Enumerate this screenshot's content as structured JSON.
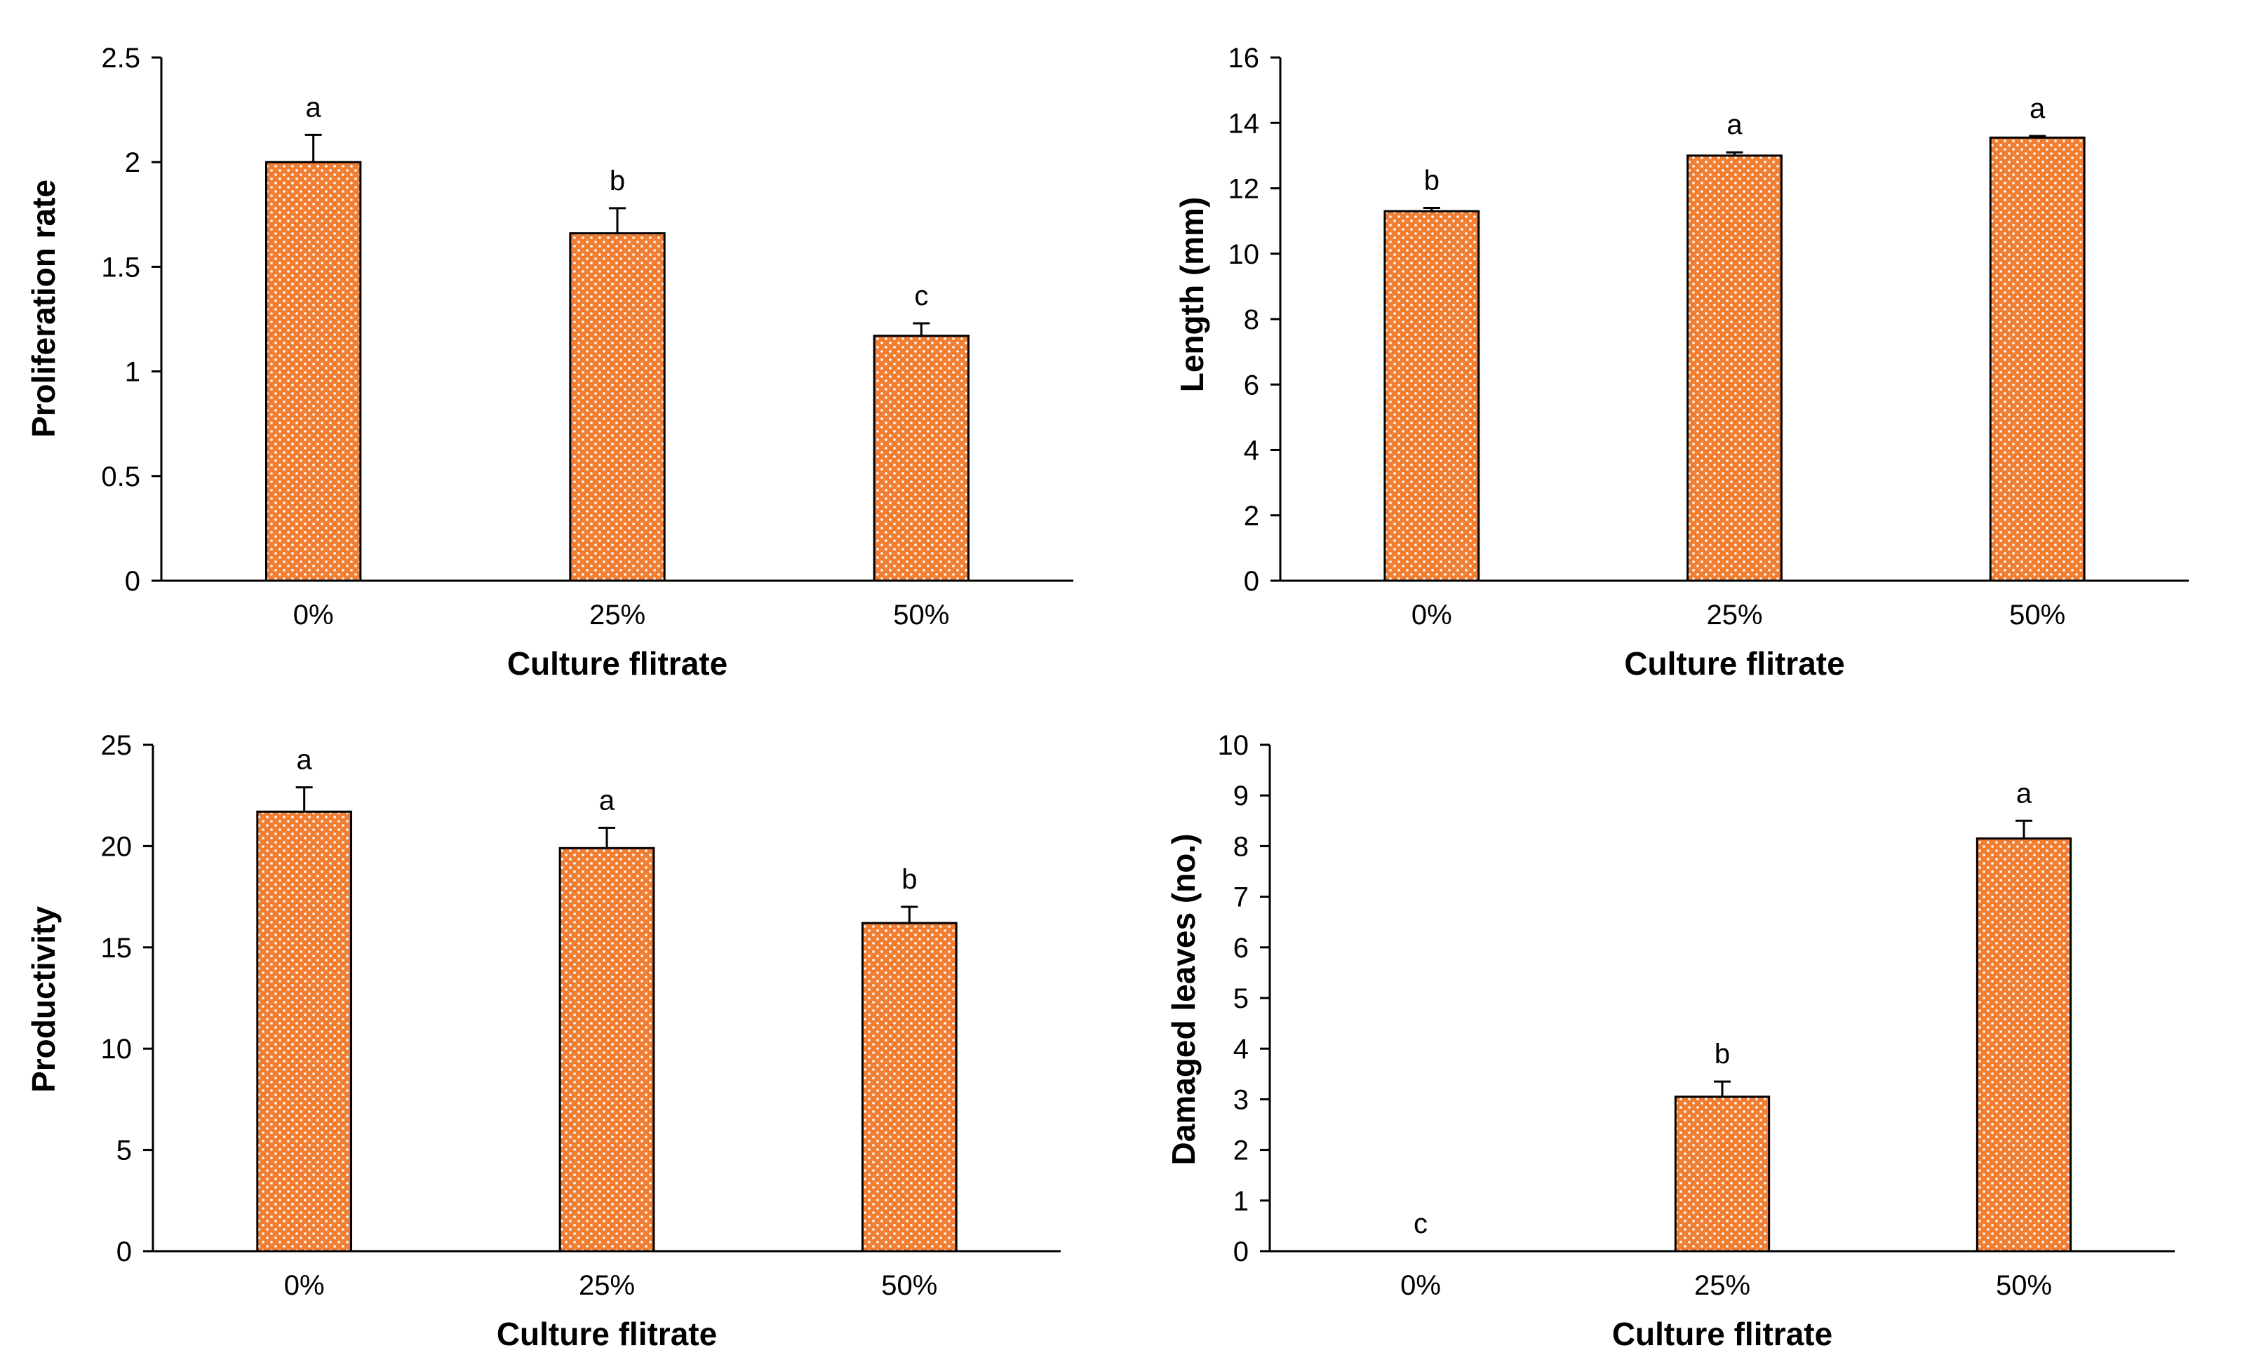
{
  "chart_data": [
    {
      "type": "bar",
      "categories": [
        "0%",
        "25%",
        "50%"
      ],
      "values": [
        2.0,
        1.66,
        1.17
      ],
      "errors": [
        0.13,
        0.12,
        0.06
      ],
      "letters": [
        "a",
        "b",
        "c"
      ],
      "title": "",
      "xlabel": "Culture flitrate",
      "ylabel": "Proliferation rate",
      "ylim": [
        0,
        2.5
      ],
      "yticks": [
        0,
        0.5,
        1,
        1.5,
        2,
        2.5
      ],
      "yticklabels": [
        "0",
        "0.5",
        "1",
        "1.5",
        "2",
        "2.5"
      ],
      "grid": false,
      "legend": "none"
    },
    {
      "type": "bar",
      "categories": [
        "0%",
        "25%",
        "50%"
      ],
      "values": [
        11.3,
        13.0,
        13.55
      ],
      "errors": [
        0.1,
        0.1,
        0.05
      ],
      "letters": [
        "b",
        "a",
        "a"
      ],
      "title": "",
      "xlabel": "Culture flitrate",
      "ylabel": "Length (mm)",
      "ylim": [
        0,
        16
      ],
      "yticks": [
        0,
        2,
        4,
        6,
        8,
        10,
        12,
        14,
        16
      ],
      "yticklabels": [
        "0",
        "2",
        "4",
        "6",
        "8",
        "10",
        "12",
        "14",
        "16"
      ],
      "grid": false,
      "legend": "none"
    },
    {
      "type": "bar",
      "categories": [
        "0%",
        "25%",
        "50%"
      ],
      "values": [
        21.7,
        19.9,
        16.2
      ],
      "errors": [
        1.2,
        1.0,
        0.8
      ],
      "letters": [
        "a",
        "a",
        "b"
      ],
      "title": "",
      "xlabel": "Culture flitrate",
      "ylabel": "Productivity",
      "ylim": [
        0,
        25
      ],
      "yticks": [
        0,
        5,
        10,
        15,
        20,
        25
      ],
      "yticklabels": [
        "0",
        "5",
        "10",
        "15",
        "20",
        "25"
      ],
      "grid": false,
      "legend": "none"
    },
    {
      "type": "bar",
      "categories": [
        "0%",
        "25%",
        "50%"
      ],
      "values": [
        0,
        3.05,
        8.15
      ],
      "errors": [
        0,
        0.3,
        0.35
      ],
      "letters": [
        "c",
        "b",
        "a"
      ],
      "title": "",
      "xlabel": "Culture flitrate",
      "ylabel": "Damaged leaves (no.)",
      "ylim": [
        0,
        10
      ],
      "yticks": [
        0,
        1,
        2,
        3,
        4,
        5,
        6,
        7,
        8,
        9,
        10
      ],
      "yticklabels": [
        "0",
        "1",
        "2",
        "3",
        "4",
        "5",
        "6",
        "7",
        "8",
        "9",
        "10"
      ],
      "grid": false,
      "legend": "none"
    }
  ],
  "colors": {
    "bar_fill": "#f07f34",
    "bar_dot": "#ffffff",
    "bar_edge": "#000000",
    "axis": "#000000"
  }
}
